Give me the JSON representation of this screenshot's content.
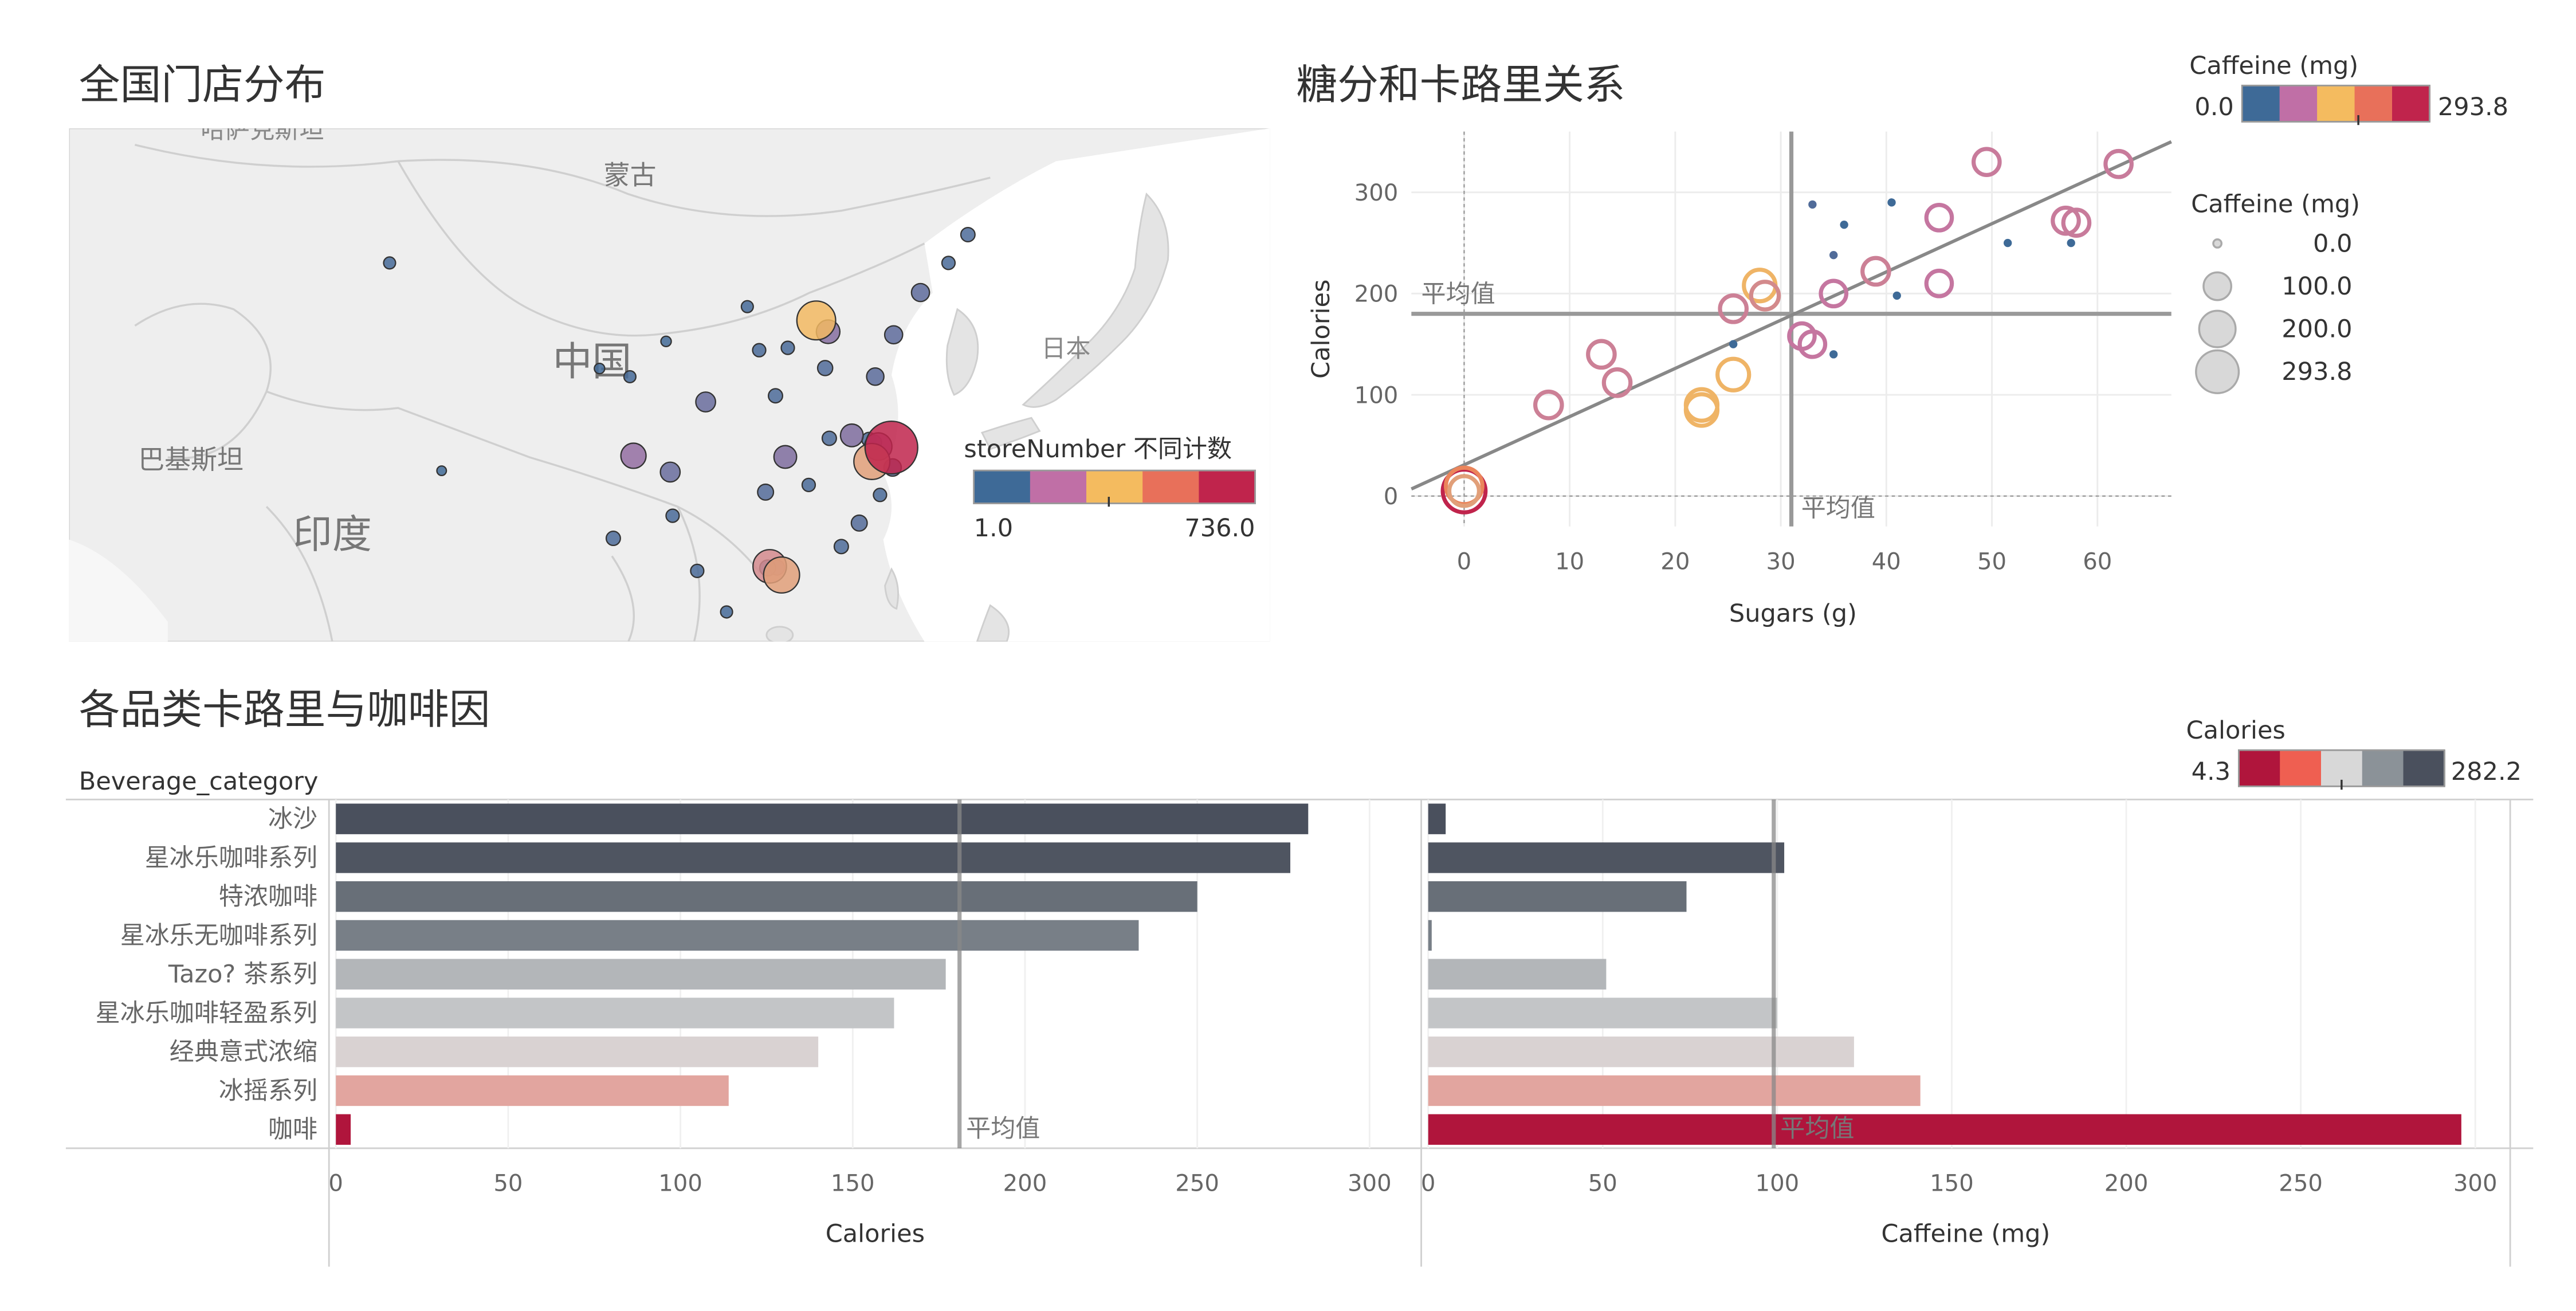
{
  "map_panel": {
    "title": "全国门店分布",
    "labels": {
      "mongolia": "蒙古",
      "china": "中国",
      "japan": "日本",
      "pakistan": "巴基斯坦",
      "india": "印度",
      "top_partial": "哈萨克斯坦"
    },
    "legend": {
      "title": "storeNumber 不同计数",
      "min": "1.0",
      "max": "736.0",
      "colors": [
        "#3e6a97",
        "#c06fa6",
        "#f4bb5f",
        "#e8705a",
        "#c0244c"
      ]
    },
    "store_points": [
      {
        "lon": 104.07,
        "lat": 30.67,
        "value": 120
      },
      {
        "lon": 106.55,
        "lat": 29.56,
        "value": 60
      },
      {
        "lon": 108.94,
        "lat": 34.34,
        "value": 60
      },
      {
        "lon": 113.65,
        "lat": 34.76,
        "value": 20
      },
      {
        "lon": 114.31,
        "lat": 30.59,
        "value": 90
      },
      {
        "lon": 112.98,
        "lat": 28.19,
        "value": 30
      },
      {
        "lon": 113.26,
        "lat": 23.13,
        "value": 250
      },
      {
        "lon": 114.06,
        "lat": 22.54,
        "value": 300
      },
      {
        "lon": 118.8,
        "lat": 32.06,
        "value": 90
      },
      {
        "lon": 120.15,
        "lat": 30.28,
        "value": 300
      },
      {
        "lon": 121.47,
        "lat": 31.23,
        "value": 736
      },
      {
        "lon": 120.58,
        "lat": 31.3,
        "value": 150
      },
      {
        "lon": 116.4,
        "lat": 39.9,
        "value": 360
      },
      {
        "lon": 117.2,
        "lat": 39.13,
        "value": 100
      },
      {
        "lon": 123.43,
        "lat": 41.8,
        "value": 45
      },
      {
        "lon": 126.63,
        "lat": 45.75,
        "value": 20
      },
      {
        "lon": 120.38,
        "lat": 36.07,
        "value": 40
      },
      {
        "lon": 117.0,
        "lat": 36.65,
        "value": 25
      },
      {
        "lon": 118.09,
        "lat": 24.48,
        "value": 20
      },
      {
        "lon": 119.3,
        "lat": 26.08,
        "value": 30
      },
      {
        "lon": 102.71,
        "lat": 25.04,
        "value": 20
      },
      {
        "lon": 106.71,
        "lat": 26.58,
        "value": 15
      },
      {
        "lon": 108.37,
        "lat": 22.82,
        "value": 15
      },
      {
        "lon": 115.89,
        "lat": 28.68,
        "value": 15
      },
      {
        "lon": 117.28,
        "lat": 31.86,
        "value": 20
      },
      {
        "lon": 112.55,
        "lat": 37.87,
        "value": 15
      },
      {
        "lon": 114.48,
        "lat": 38.03,
        "value": 15
      },
      {
        "lon": 111.75,
        "lat": 40.84,
        "value": 10
      },
      {
        "lon": 103.83,
        "lat": 36.06,
        "value": 10
      },
      {
        "lon": 101.78,
        "lat": 36.62,
        "value": 5
      },
      {
        "lon": 87.62,
        "lat": 43.82,
        "value": 10
      },
      {
        "lon": 121.62,
        "lat": 38.92,
        "value": 45
      },
      {
        "lon": 125.32,
        "lat": 43.82,
        "value": 15
      },
      {
        "lon": 110.35,
        "lat": 20.02,
        "value": 10
      },
      {
        "lon": 120.7,
        "lat": 28.0,
        "value": 15
      },
      {
        "lon": 121.55,
        "lat": 29.87,
        "value": 40
      },
      {
        "lon": 119.95,
        "lat": 31.78,
        "value": 20
      },
      {
        "lon": 120.3,
        "lat": 31.57,
        "value": 25
      },
      {
        "lon": 113.12,
        "lat": 23.02,
        "value": 30
      },
      {
        "lon": 113.75,
        "lat": 23.05,
        "value": 25
      },
      {
        "lon": 106.27,
        "lat": 38.47,
        "value": 5
      },
      {
        "lon": 91.13,
        "lat": 29.65,
        "value": 3
      }
    ]
  },
  "scatter_panel": {
    "title": "糖分和卡路里关系",
    "color_legend": {
      "title": "Caffeine (mg)",
      "min": "0.0",
      "max": "293.8",
      "colors": [
        "#3e6a97",
        "#c06fa6",
        "#f4bb5f",
        "#e8705a",
        "#c0244c"
      ]
    },
    "size_legend": {
      "title": "Caffeine (mg)",
      "items": [
        "0.0",
        "100.0",
        "200.0",
        "293.8"
      ]
    }
  },
  "bar_panel": {
    "title": "各品类卡路里与咖啡因",
    "row_header": "Beverage_category",
    "legend": {
      "title": "Calories",
      "min": "4.3",
      "max": "282.2",
      "colors": [
        "#b0153c",
        "#ef5f51",
        "#d8d8d8",
        "#8b9298",
        "#4a505d"
      ]
    }
  },
  "chart_data": [
    {
      "type": "scatter",
      "title": "糖分和卡路里关系",
      "xlabel": "Sugars (g)",
      "ylabel": "Calories",
      "xlim": [
        -5,
        67
      ],
      "ylim": [
        -30,
        360
      ],
      "x_ticks": [
        "0",
        "10",
        "20",
        "30",
        "40",
        "50",
        "60"
      ],
      "y_ticks": [
        "0",
        "100",
        "200",
        "300"
      ],
      "reference_lines": {
        "x_average": 31,
        "y_average": 180,
        "label": "平均值"
      },
      "trend_line": {
        "x": [
          -5,
          67
        ],
        "y": [
          7,
          350
        ]
      },
      "grid": true,
      "points": [
        {
          "x": 0,
          "y": 5,
          "caffeine": 293.8
        },
        {
          "x": 0,
          "y": 10,
          "caffeine": 200
        },
        {
          "x": 0,
          "y": 5,
          "caffeine": 120
        },
        {
          "x": 8,
          "y": 90,
          "caffeine": 90
        },
        {
          "x": 13,
          "y": 140,
          "caffeine": 90
        },
        {
          "x": 14.5,
          "y": 112,
          "caffeine": 90
        },
        {
          "x": 22.5,
          "y": 90,
          "caffeine": 140
        },
        {
          "x": 22.5,
          "y": 85,
          "caffeine": 140
        },
        {
          "x": 25.5,
          "y": 120,
          "caffeine": 140
        },
        {
          "x": 28,
          "y": 208,
          "caffeine": 140
        },
        {
          "x": 28.5,
          "y": 198,
          "caffeine": 100
        },
        {
          "x": 25.5,
          "y": 185,
          "caffeine": 90
        },
        {
          "x": 25.5,
          "y": 150,
          "caffeine": 0
        },
        {
          "x": 32,
          "y": 158,
          "caffeine": 80
        },
        {
          "x": 33,
          "y": 150,
          "caffeine": 80
        },
        {
          "x": 35,
          "y": 200,
          "caffeine": 80
        },
        {
          "x": 35,
          "y": 140,
          "caffeine": 0
        },
        {
          "x": 35,
          "y": 238,
          "caffeine": 10
        },
        {
          "x": 33,
          "y": 288,
          "caffeine": 10
        },
        {
          "x": 36,
          "y": 268,
          "caffeine": 0
        },
        {
          "x": 39,
          "y": 222,
          "caffeine": 90
        },
        {
          "x": 41,
          "y": 198,
          "caffeine": 0
        },
        {
          "x": 40.5,
          "y": 290,
          "caffeine": 0
        },
        {
          "x": 45,
          "y": 210,
          "caffeine": 80
        },
        {
          "x": 45,
          "y": 275,
          "caffeine": 80
        },
        {
          "x": 49.5,
          "y": 330,
          "caffeine": 85
        },
        {
          "x": 51.5,
          "y": 250,
          "caffeine": 0
        },
        {
          "x": 57,
          "y": 272,
          "caffeine": 85
        },
        {
          "x": 57.5,
          "y": 250,
          "caffeine": 0
        },
        {
          "x": 58,
          "y": 270,
          "caffeine": 85
        },
        {
          "x": 62,
          "y": 328,
          "caffeine": 85
        }
      ]
    },
    {
      "type": "bar",
      "title": "各品类卡路里与咖啡因",
      "categories": [
        "冰沙",
        "星冰乐咖啡系列",
        "特浓咖啡",
        "星冰乐无咖啡系列",
        "Tazo? 茶系列",
        "星冰乐咖啡轻盈系列",
        "经典意式浓缩",
        "冰摇系列",
        "咖啡"
      ],
      "series": [
        {
          "name": "Calories",
          "values": [
            282.2,
            277.0,
            250.0,
            233.0,
            177.0,
            162.0,
            140.0,
            114.0,
            4.3
          ],
          "xlim": [
            -2,
            315
          ],
          "ticks": [
            "0",
            "50",
            "100",
            "150",
            "200",
            "250",
            "300"
          ],
          "average": 181,
          "average_label": "平均值"
        },
        {
          "name": "Caffeine (mg)",
          "values": [
            5,
            102,
            74,
            1,
            51,
            100,
            122,
            141,
            296
          ],
          "xlim": [
            -2,
            310
          ],
          "ticks": [
            "0",
            "50",
            "100",
            "150",
            "200",
            "250",
            "300"
          ],
          "average": 99,
          "average_label": "平均值"
        }
      ],
      "xlabel": "",
      "ylabel": ""
    }
  ]
}
